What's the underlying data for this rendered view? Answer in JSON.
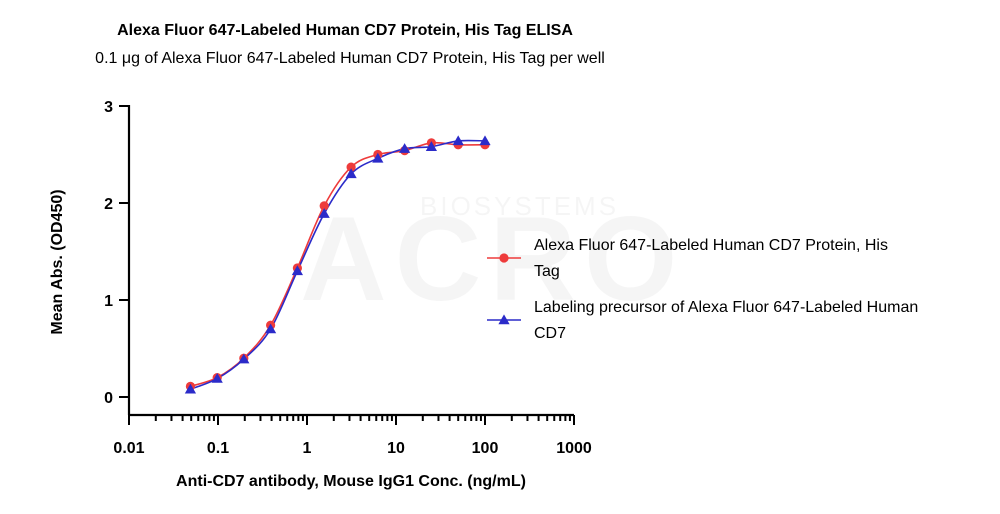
{
  "chart_data": {
    "type": "line",
    "title": "Alexa Fluor 647-Labeled Human CD7 Protein, His Tag ELISA",
    "subtitle": "0.1 μg of Alexa Fluor 647-Labeled Human CD7 Protein, His Tag per well",
    "xlabel": "Anti-CD7 antibody, Mouse IgG1 Conc. (ng/mL)",
    "ylabel": "Mean Abs. (OD450)",
    "xscale": "log",
    "xlim": [
      0.01,
      1000
    ],
    "ylim": [
      0,
      3
    ],
    "xticks": [
      "0.01",
      "0.1",
      "1",
      "10",
      "100",
      "1000"
    ],
    "yticks": [
      "0",
      "1",
      "2",
      "3"
    ],
    "grid": false,
    "legend_position": "right",
    "watermark": {
      "main": "ACRO",
      "sub": "BIOSYSTEMS"
    },
    "series": [
      {
        "name": "Alexa Fluor 647-Labeled Human CD7 Protein, His Tag",
        "legend_lines": [
          "Alexa Fluor 647-Labeled Human CD7 Protein, His",
          "Tag"
        ],
        "color": "#ee3b3b",
        "marker": "circle",
        "x": [
          0.049,
          0.098,
          0.195,
          0.39,
          0.78,
          1.56,
          3.13,
          6.25,
          12.5,
          25,
          50,
          100
        ],
        "y": [
          0.11,
          0.2,
          0.4,
          0.74,
          1.33,
          1.97,
          2.37,
          2.5,
          2.54,
          2.62,
          2.6,
          2.6
        ]
      },
      {
        "name": "Labeling precursor of Alexa Fluor 647-Labeled Human CD7",
        "legend_lines": [
          "Labeling precursor of Alexa Fluor 647-Labeled Human",
          "CD7"
        ],
        "color": "#2b2bc9",
        "marker": "triangle",
        "x": [
          0.049,
          0.098,
          0.195,
          0.39,
          0.78,
          1.56,
          3.13,
          6.25,
          12.5,
          25,
          50,
          100
        ],
        "y": [
          0.08,
          0.19,
          0.39,
          0.7,
          1.3,
          1.89,
          2.3,
          2.46,
          2.56,
          2.58,
          2.64,
          2.64
        ]
      }
    ]
  }
}
